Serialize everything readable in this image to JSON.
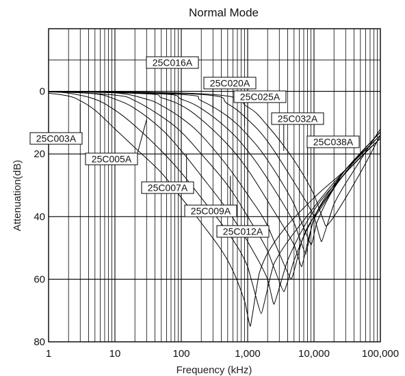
{
  "chart_data": {
    "type": "line",
    "title": "Normal Mode",
    "xlabel": "Frequency (kHz)",
    "ylabel": "Attenuation(dB)",
    "x_scale": "log",
    "xlim": [
      1,
      100000
    ],
    "ylim": [
      80,
      -20
    ],
    "y_inverted": true,
    "grid": true,
    "x_ticks": [
      {
        "value": 1,
        "label": "1"
      },
      {
        "value": 10,
        "label": "10"
      },
      {
        "value": 100,
        "label": "100"
      },
      {
        "value": 1000,
        "label": "1,000"
      },
      {
        "value": 10000,
        "label": "10,000"
      },
      {
        "value": 100000,
        "label": "100,000"
      }
    ],
    "y_ticks": [
      {
        "value": 0,
        "label": "0"
      },
      {
        "value": 20,
        "label": "20"
      },
      {
        "value": 40,
        "label": "40"
      },
      {
        "value": 60,
        "label": "60"
      },
      {
        "value": 80,
        "label": "80"
      }
    ],
    "series": [
      {
        "name": "25C003A",
        "x": [
          1,
          2,
          3,
          5,
          10,
          20,
          50,
          100,
          200,
          500,
          900,
          1100,
          1500,
          3000,
          10000,
          30000,
          100000
        ],
        "y": [
          0.6,
          1.5,
          3,
          6,
          12,
          18,
          26,
          34,
          42,
          54,
          67,
          75,
          58,
          46,
          34,
          25,
          14
        ]
      },
      {
        "name": "25C005A",
        "x": [
          1,
          2,
          5,
          10,
          20,
          50,
          100,
          200,
          500,
          1000,
          1600,
          2500,
          10000,
          30000,
          100000
        ],
        "y": [
          0.2,
          0.6,
          2.5,
          6,
          11,
          19,
          26,
          34,
          45,
          56,
          71,
          55,
          37,
          25,
          14
        ]
      },
      {
        "name": "25C007A",
        "x": [
          1,
          5,
          10,
          20,
          50,
          100,
          200,
          500,
          1000,
          2000,
          2500,
          4000,
          10000,
          30000,
          100000
        ],
        "y": [
          0,
          0.8,
          2.5,
          5.5,
          12,
          19,
          27,
          38,
          48,
          60,
          68,
          54,
          38,
          26,
          15
        ]
      },
      {
        "name": "25C009A",
        "x": [
          1,
          10,
          20,
          50,
          100,
          200,
          500,
          1000,
          2000,
          3500,
          5000,
          10000,
          30000,
          100000
        ],
        "y": [
          0,
          1.2,
          3,
          8,
          13,
          20,
          30,
          40,
          51,
          64,
          54,
          40,
          26,
          15
        ]
      },
      {
        "name": "25C012A",
        "x": [
          1,
          10,
          30,
          50,
          100,
          200,
          500,
          1000,
          2000,
          4500,
          6500,
          10000,
          30000,
          100000
        ],
        "y": [
          0,
          0.5,
          2.5,
          4.5,
          8.5,
          14,
          24,
          33,
          43,
          60,
          48,
          40,
          26,
          15
        ]
      },
      {
        "name": "25C016A",
        "x": [
          1,
          30,
          50,
          100,
          200,
          500,
          1000,
          2000,
          5000,
          6500,
          8500,
          12000,
          30000,
          100000
        ],
        "y": [
          0,
          0.8,
          2,
          4.5,
          9,
          17,
          25,
          35,
          49,
          56,
          46,
          37,
          25,
          13
        ]
      },
      {
        "name": "25C020A",
        "x": [
          1,
          50,
          100,
          200,
          500,
          1000,
          2000,
          5000,
          7500,
          9500,
          15000,
          30000,
          100000
        ],
        "y": [
          0,
          0.8,
          2.5,
          5.5,
          12,
          19,
          28,
          42,
          52,
          42,
          35,
          25,
          13
        ]
      },
      {
        "name": "25C025A",
        "x": [
          1,
          100,
          200,
          500,
          1000,
          2000,
          5000,
          9000,
          11000,
          20000,
          50000,
          100000
        ],
        "y": [
          0,
          1,
          3,
          8,
          14,
          22,
          36,
          49,
          42,
          31,
          20,
          13
        ]
      },
      {
        "name": "25C032A",
        "x": [
          1,
          200,
          500,
          1000,
          2000,
          5000,
          10000,
          13000,
          20000,
          50000,
          100000
        ],
        "y": [
          0,
          1,
          4,
          9,
          16,
          29,
          40,
          48,
          36,
          22,
          12
        ]
      },
      {
        "name": "25C038A",
        "x": [
          1,
          300,
          1000,
          2000,
          5000,
          10000,
          15000,
          20000,
          50000,
          100000
        ],
        "y": [
          0,
          1,
          5,
          11,
          22,
          33,
          43,
          40,
          26,
          14
        ]
      }
    ],
    "labels": [
      {
        "text": "25C003A",
        "pointer_x": 3,
        "pointer_y": 4
      },
      {
        "text": "25C005A",
        "pointer_x": 30,
        "pointer_y": 9
      },
      {
        "text": "25C007A",
        "pointer_x": 120,
        "pointer_y": 20
      },
      {
        "text": "25C009A",
        "pointer_x": 550,
        "pointer_y": 27
      },
      {
        "text": "25C012A",
        "pointer_x": 2000,
        "pointer_y": 35
      },
      {
        "text": "25C016A",
        "pointer_x": 100,
        "pointer_y": 3
      },
      {
        "text": "25C020A",
        "pointer_x": 300,
        "pointer_y": 7
      },
      {
        "text": "25C025A",
        "pointer_x": 900,
        "pointer_y": 11
      },
      {
        "text": "25C032A",
        "pointer_x": 3500,
        "pointer_y": 19
      },
      {
        "text": "25C038A",
        "pointer_x": 8000,
        "pointer_y": 27
      }
    ]
  }
}
